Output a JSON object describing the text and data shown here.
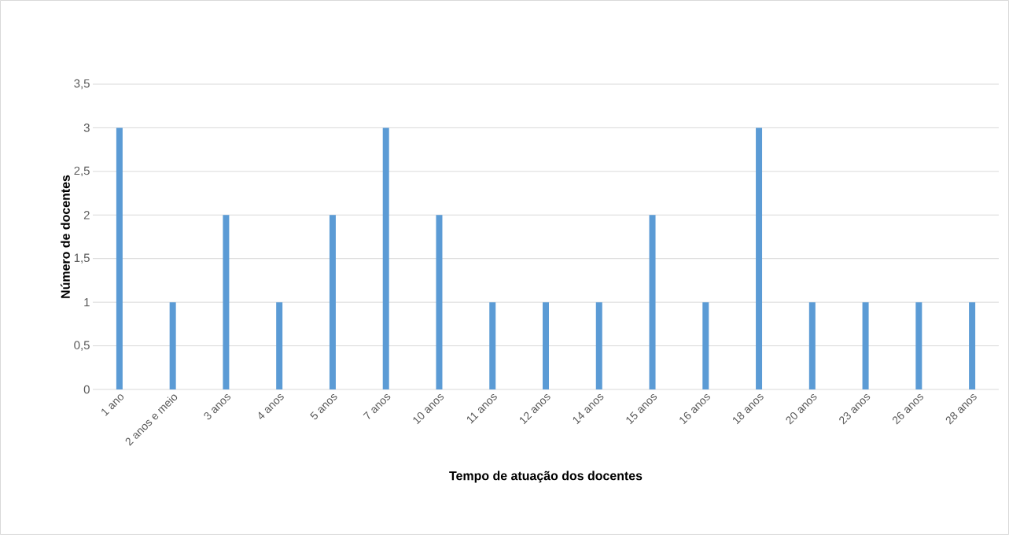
{
  "chart_data": {
    "type": "bar",
    "xlabel": "Tempo de atuação dos docentes",
    "ylabel": "Número de docentes",
    "categories": [
      "1 ano",
      "2 anos e meio",
      "3 anos",
      "4 anos",
      "5 anos",
      "7 anos",
      "10 anos",
      "11 anos",
      "12 anos",
      "14 anos",
      "15 anos",
      "16 anos",
      "18 anos",
      "20 anos",
      "23 anos",
      "26 anos",
      "28 anos"
    ],
    "values": [
      3,
      1,
      2,
      1,
      2,
      3,
      2,
      1,
      1,
      1,
      2,
      1,
      3,
      1,
      1,
      1,
      1
    ],
    "color": "#5b9bd5",
    "ylim": [
      0,
      3.5
    ],
    "yticks": [
      0,
      {
        "value": 0.5,
        "label": "0,5"
      },
      1,
      {
        "value": 1.5,
        "label": "1,5"
      },
      2,
      {
        "value": 2.5,
        "label": "2,5"
      },
      3,
      {
        "value": 3.5,
        "label": "3,5"
      }
    ],
    "grid": "y"
  }
}
